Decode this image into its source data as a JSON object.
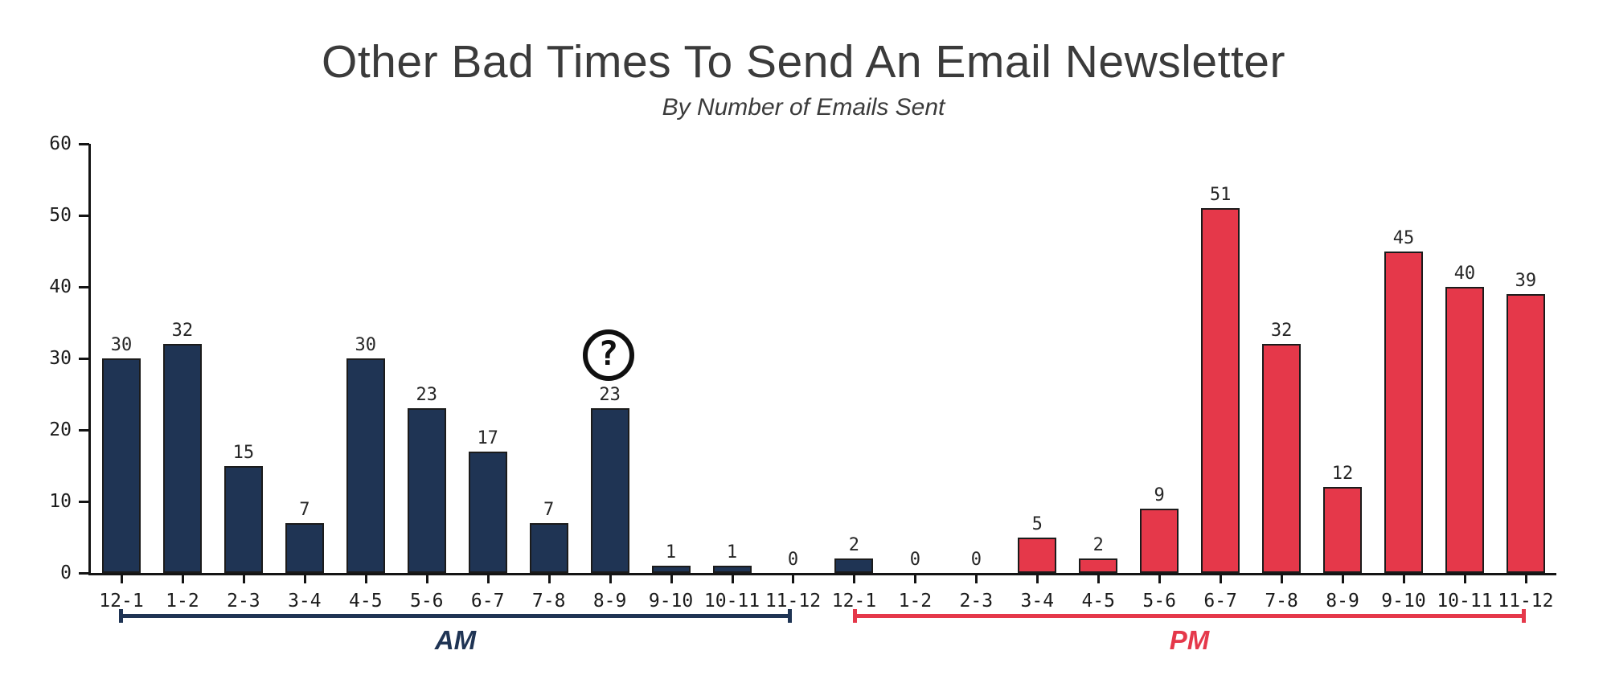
{
  "header": {
    "title": "Other Bad Times To Send An Email Newsletter",
    "subtitle": "By Number of Emails Sent"
  },
  "colors": {
    "navy": "#1f3454",
    "red": "#e5384a",
    "axis": "#141414",
    "title_text": "#3b3b3b",
    "label_text": "#1c1c1c"
  },
  "chart_data": {
    "type": "bar",
    "title": "Other Bad Times To Send An Email Newsletter",
    "subtitle": "By Number of Emails Sent",
    "ylim": [
      0,
      60
    ],
    "yticks": [
      0,
      10,
      20,
      30,
      40,
      50,
      60
    ],
    "grid": false,
    "legend": "none",
    "bars": [
      {
        "label": "12-1",
        "period": "AM",
        "value": 30,
        "color": "navy"
      },
      {
        "label": "1-2",
        "period": "AM",
        "value": 32,
        "color": "navy"
      },
      {
        "label": "2-3",
        "period": "AM",
        "value": 15,
        "color": "navy"
      },
      {
        "label": "3-4",
        "period": "AM",
        "value": 7,
        "color": "navy"
      },
      {
        "label": "4-5",
        "period": "AM",
        "value": 30,
        "color": "navy"
      },
      {
        "label": "5-6",
        "period": "AM",
        "value": 23,
        "color": "navy"
      },
      {
        "label": "6-7",
        "period": "AM",
        "value": 17,
        "color": "navy"
      },
      {
        "label": "7-8",
        "period": "AM",
        "value": 7,
        "color": "navy"
      },
      {
        "label": "8-9",
        "period": "AM",
        "value": 23,
        "color": "navy",
        "annotated": true
      },
      {
        "label": "9-10",
        "period": "AM",
        "value": 1,
        "color": "navy"
      },
      {
        "label": "10-11",
        "period": "AM",
        "value": 1,
        "color": "navy"
      },
      {
        "label": "11-12",
        "period": "AM",
        "value": 0,
        "color": "navy"
      },
      {
        "label": "12-1",
        "period": "PM",
        "value": 2,
        "color": "navy"
      },
      {
        "label": "1-2",
        "period": "PM",
        "value": 0,
        "color": "red"
      },
      {
        "label": "2-3",
        "period": "PM",
        "value": 0,
        "color": "red"
      },
      {
        "label": "3-4",
        "period": "PM",
        "value": 5,
        "color": "red"
      },
      {
        "label": "4-5",
        "period": "PM",
        "value": 2,
        "color": "red"
      },
      {
        "label": "5-6",
        "period": "PM",
        "value": 9,
        "color": "red"
      },
      {
        "label": "6-7",
        "period": "PM",
        "value": 51,
        "color": "red"
      },
      {
        "label": "7-8",
        "period": "PM",
        "value": 32,
        "color": "red"
      },
      {
        "label": "8-9",
        "period": "PM",
        "value": 12,
        "color": "red"
      },
      {
        "label": "9-10",
        "period": "PM",
        "value": 45,
        "color": "red"
      },
      {
        "label": "10-11",
        "period": "PM",
        "value": 40,
        "color": "red"
      },
      {
        "label": "11-12",
        "period": "PM",
        "value": 39,
        "color": "red"
      }
    ],
    "group_brackets": [
      {
        "label": "AM",
        "color": "navy",
        "from_bar": 0,
        "to_bar": 11
      },
      {
        "label": "PM",
        "color": "red",
        "from_bar": 12,
        "to_bar": 23
      }
    ],
    "annotation": {
      "symbol": "?",
      "shape": "circled-question-mark",
      "bar_index": 8,
      "description": "circled question mark above the 8-9 AM bar"
    }
  }
}
